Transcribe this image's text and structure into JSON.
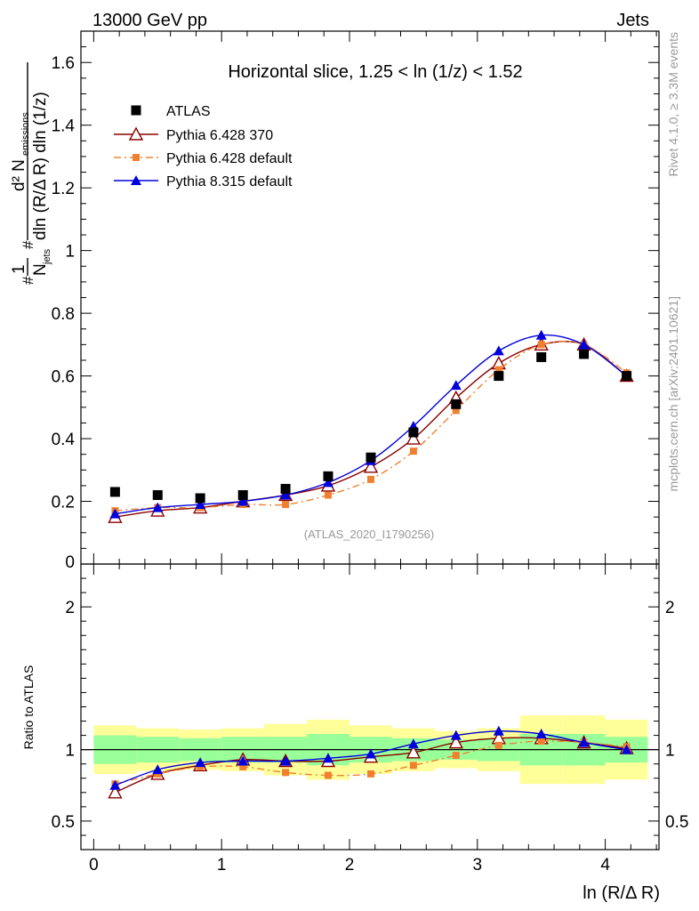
{
  "header": {
    "left": "13000 GeV pp",
    "right": "Jets"
  },
  "side_labels": {
    "top": "Rivet 4.1.0, ≥ 3.3M events",
    "bottom": "mcplots.cern.ch [arXiv:2401.10621]"
  },
  "chart_data": {
    "type": "line",
    "title": "Horizontal slice, 1.25 < ln (1/z) < 1.52",
    "watermark": "(ATLAS_2020_I1790256)",
    "xlabel": "ln (R/Δ R)",
    "ylabel": {
      "frac1_num": "1",
      "frac1_den": "N",
      "frac1_den_sub": "jets",
      "frac2_num": "d² N",
      "frac2_num_sub": "emissions",
      "frac2_den": "dln (R/Δ R) dln (1/z)",
      "hash": "#"
    },
    "ratio_ylabel": "Ratio to ATLAS",
    "xlim": [
      -0.1,
      4.42
    ],
    "ylim": [
      0,
      1.7
    ],
    "ratio_ylim": [
      0.3,
      2.3
    ],
    "x_ticks": [
      0,
      1,
      2,
      3,
      4
    ],
    "x_tick_labels": [
      "0",
      "1",
      "2",
      "3",
      "4"
    ],
    "y_ticks": [
      0.2,
      0.4,
      0.6,
      0.8,
      1.0,
      1.2,
      1.4,
      1.6
    ],
    "y_tick_labels": [
      "0.2",
      "0.4",
      "0.6",
      "0.8",
      "1",
      "1.2",
      "1.4",
      "1.6"
    ],
    "y_zero_label": "0",
    "ratio_ticks": [
      0.5,
      1,
      2
    ],
    "ratio_tick_labels": [
      "0.5",
      "1",
      "2"
    ],
    "x": [
      0.167,
      0.5,
      0.833,
      1.167,
      1.5,
      1.833,
      2.167,
      2.5,
      2.833,
      3.167,
      3.5,
      3.833,
      4.167
    ],
    "bin_edges": [
      0,
      0.333,
      0.667,
      1.0,
      1.333,
      1.667,
      2.0,
      2.333,
      2.667,
      3.0,
      3.333,
      3.667,
      4.0,
      4.333
    ],
    "series": [
      {
        "name": "ATLAS",
        "color": "#000000",
        "marker": "square",
        "line": "none",
        "values": [
          0.23,
          0.22,
          0.21,
          0.22,
          0.24,
          0.28,
          0.34,
          0.42,
          0.51,
          0.6,
          0.66,
          0.67,
          0.6
        ]
      },
      {
        "name": "Pythia 6.428 370",
        "color": "#8b0000",
        "marker": "triangle-open",
        "line": "solid",
        "values": [
          0.15,
          0.17,
          0.18,
          0.2,
          0.22,
          0.25,
          0.31,
          0.4,
          0.53,
          0.64,
          0.7,
          0.7,
          0.6
        ],
        "ratio": [
          0.7,
          0.83,
          0.89,
          0.93,
          0.92,
          0.92,
          0.95,
          0.98,
          1.05,
          1.08,
          1.08,
          1.05,
          1.01
        ]
      },
      {
        "name": "Pythia 6.428 default",
        "color": "#f08030",
        "marker": "square-small",
        "line": "dashdot",
        "values": [
          0.17,
          0.18,
          0.18,
          0.19,
          0.19,
          0.22,
          0.27,
          0.36,
          0.49,
          0.62,
          0.7,
          0.7,
          0.61
        ],
        "ratio": [
          0.76,
          0.83,
          0.88,
          0.88,
          0.84,
          0.82,
          0.83,
          0.89,
          0.96,
          1.03,
          1.06,
          1.05,
          1.02
        ]
      },
      {
        "name": "Pythia 8.315 default",
        "color": "#0000dd",
        "marker": "triangle",
        "line": "solid",
        "values": [
          0.16,
          0.18,
          0.19,
          0.2,
          0.22,
          0.26,
          0.33,
          0.44,
          0.57,
          0.68,
          0.73,
          0.7,
          0.6
        ],
        "ratio": [
          0.75,
          0.86,
          0.91,
          0.92,
          0.92,
          0.94,
          0.97,
          1.04,
          1.1,
          1.13,
          1.11,
          1.05,
          1.0
        ]
      }
    ],
    "uncertainty_bands": {
      "inner_color": "#99ff99",
      "outer_color": "#ffff99",
      "inner_halfwidth": [
        0.1,
        0.09,
        0.08,
        0.09,
        0.09,
        0.11,
        0.09,
        0.08,
        0.07,
        0.08,
        0.11,
        0.11,
        0.09
      ],
      "outer_halfwidth": [
        0.17,
        0.15,
        0.14,
        0.15,
        0.18,
        0.21,
        0.17,
        0.15,
        0.13,
        0.15,
        0.24,
        0.24,
        0.21
      ]
    }
  }
}
